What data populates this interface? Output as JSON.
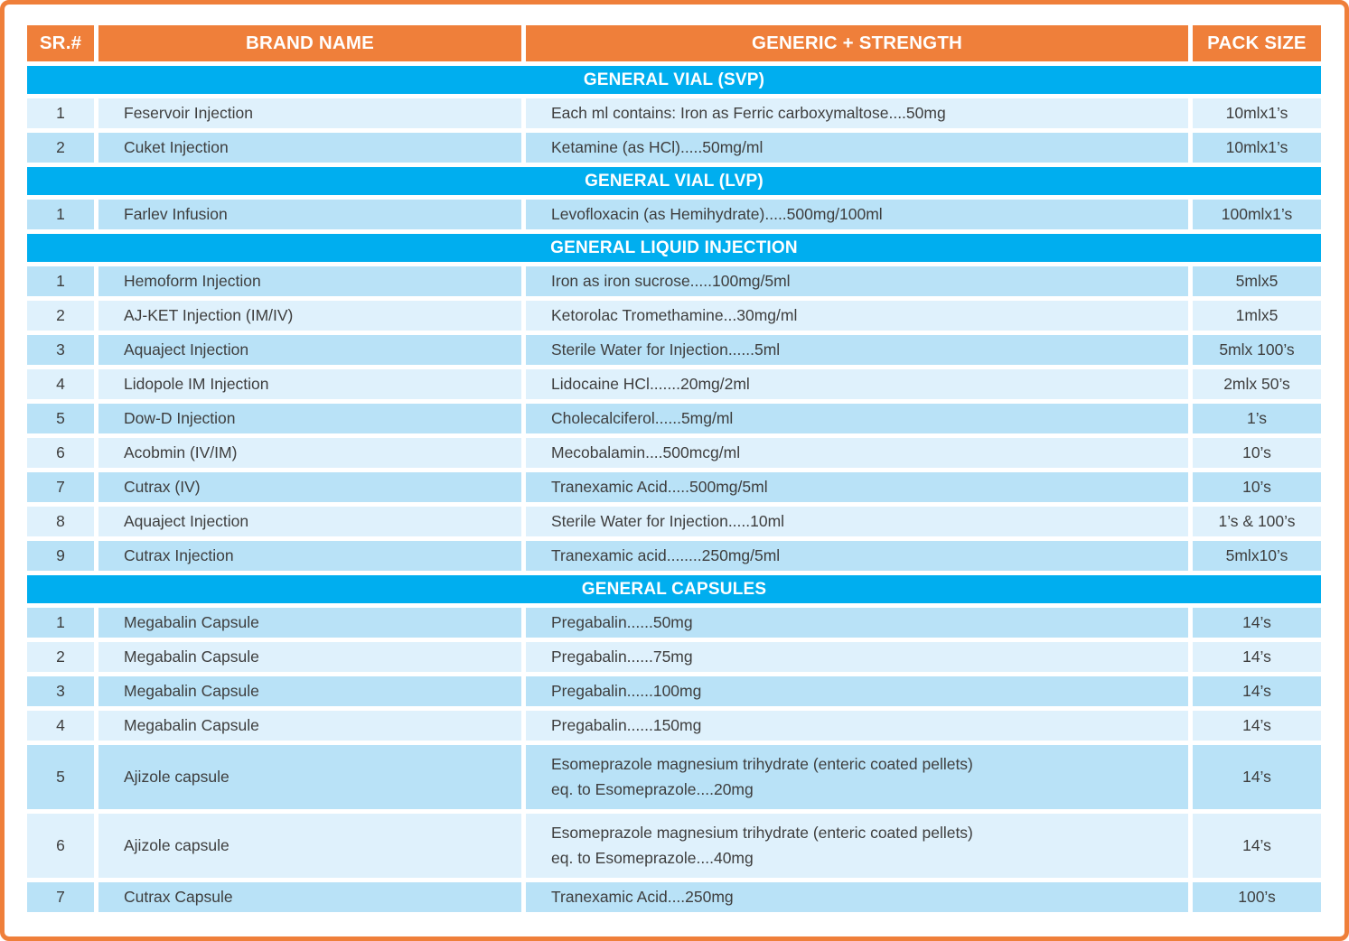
{
  "colors": {
    "orange": "#EF7F3A",
    "blue": "#00AEEF",
    "row_light": "#DFF1FC",
    "row_dark": "#B9E2F7",
    "text": "#3E3E3E",
    "header_text": "#FFFFFF",
    "background": "#FFFFFF"
  },
  "table": {
    "columns": [
      "SR.#",
      "BRAND NAME",
      "GENERIC + STRENGTH",
      "PACK SIZE"
    ],
    "sections": [
      {
        "title": "GENERAL VIAL (SVP)",
        "start_shade": "light",
        "rows": [
          {
            "sr": "1",
            "brand": "Feservoir Injection",
            "generic": [
              "Each ml contains: Iron as Ferric carboxymaltose....50mg"
            ],
            "pack": "10mlx1’s"
          },
          {
            "sr": "2",
            "brand": "Cuket Injection",
            "generic": [
              "Ketamine (as HCl).....50mg/ml"
            ],
            "pack": "10mlx1’s"
          }
        ]
      },
      {
        "title": "GENERAL VIAL (LVP)",
        "start_shade": "dark",
        "rows": [
          {
            "sr": "1",
            "brand": "Farlev Infusion",
            "generic": [
              "Levofloxacin (as Hemihydrate).....500mg/100ml"
            ],
            "pack": "100mlx1’s"
          }
        ]
      },
      {
        "title": "GENERAL LIQUID INJECTION",
        "start_shade": "dark",
        "rows": [
          {
            "sr": "1",
            "brand": "Hemoform Injection",
            "generic": [
              "Iron as iron sucrose.....100mg/5ml"
            ],
            "pack": "5mlx5"
          },
          {
            "sr": "2",
            "brand": "AJ-KET Injection (IM/IV)",
            "generic": [
              "Ketorolac Tromethamine...30mg/ml"
            ],
            "pack": "1mlx5"
          },
          {
            "sr": "3",
            "brand": "Aquaject Injection",
            "generic": [
              "Sterile Water for Injection......5ml"
            ],
            "pack": "5mlx 100’s"
          },
          {
            "sr": "4",
            "brand": "Lidopole  IM Injection",
            "generic": [
              "Lidocaine HCl.......20mg/2ml"
            ],
            "pack": "2mlx 50’s"
          },
          {
            "sr": "5",
            "brand": "Dow-D Injection",
            "generic": [
              "Cholecalciferol......5mg/ml"
            ],
            "pack": "1’s"
          },
          {
            "sr": "6",
            "brand": "Acobmin (IV/IM)",
            "generic": [
              "Mecobalamin....500mcg/ml"
            ],
            "pack": "10’s"
          },
          {
            "sr": "7",
            "brand": "Cutrax (IV)",
            "generic": [
              "Tranexamic Acid.....500mg/5ml"
            ],
            "pack": "10’s"
          },
          {
            "sr": "8",
            "brand": "Aquaject Injection",
            "generic": [
              "Sterile Water for Injection.....10ml"
            ],
            "pack": "1’s & 100’s"
          },
          {
            "sr": "9",
            "brand": "Cutrax Injection",
            "generic": [
              "Tranexamic acid........250mg/5ml"
            ],
            "pack": "5mlx10’s"
          }
        ]
      },
      {
        "title": "GENERAL CAPSULES",
        "start_shade": "dark",
        "rows": [
          {
            "sr": "1",
            "brand": "Megabalin Capsule",
            "generic": [
              "Pregabalin......50mg"
            ],
            "pack": "14’s"
          },
          {
            "sr": "2",
            "brand": "Megabalin Capsule",
            "generic": [
              "Pregabalin......75mg"
            ],
            "pack": "14’s"
          },
          {
            "sr": "3",
            "brand": "Megabalin Capsule",
            "generic": [
              "Pregabalin......100mg"
            ],
            "pack": "14’s"
          },
          {
            "sr": "4",
            "brand": "Megabalin Capsule",
            "generic": [
              "Pregabalin......150mg"
            ],
            "pack": "14’s"
          },
          {
            "sr": "5",
            "brand": "Ajizole capsule",
            "generic": [
              "Esomeprazole  magnesium trihydrate (enteric coated pellets)",
              "eq. to Esomeprazole....20mg"
            ],
            "pack": "14’s"
          },
          {
            "sr": "6",
            "brand": "Ajizole capsule",
            "generic": [
              "Esomeprazole magnesium trihydrate (enteric coated pellets)",
              "eq. to Esomeprazole....40mg"
            ],
            "pack": "14’s"
          },
          {
            "sr": "7",
            "brand": "Cutrax Capsule",
            "generic": [
              "Tranexamic Acid....250mg"
            ],
            "pack": "100’s"
          }
        ]
      }
    ]
  }
}
